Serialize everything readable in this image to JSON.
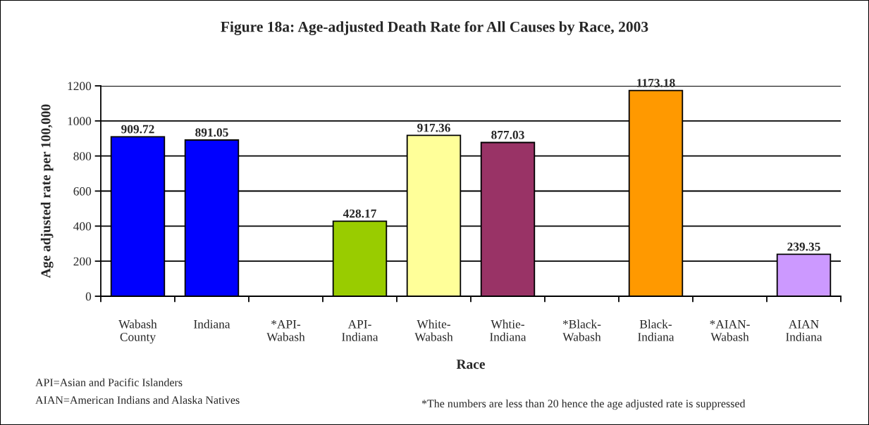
{
  "chart_data": {
    "type": "bar",
    "title": "Figure 18a: Age-adjusted Death Rate for All Causes by Race, 2003",
    "xlabel": "Race",
    "ylabel": "Age adjusted rate per 100,000",
    "categories": [
      "Wabash County",
      "Indiana",
      "*API-Wabash",
      "API-Indiana",
      "White-Wabash",
      "Whtie-Indiana",
      "*Black-Wabash",
      "Black-Indiana",
      "*AIAN-Wabash",
      "AIAN Indiana"
    ],
    "values": [
      909.72,
      891.05,
      null,
      428.17,
      917.36,
      877.03,
      null,
      1173.18,
      null,
      239.35
    ],
    "colors": [
      "#0000ff",
      "#0000ff",
      null,
      "#99cc00",
      "#ffff99",
      "#993366",
      null,
      "#ff9900",
      null,
      "#cc99ff"
    ],
    "ylim": [
      0,
      1200
    ],
    "yticks": [
      0,
      200,
      400,
      600,
      800,
      1000,
      1200
    ],
    "grid": "y",
    "data_labels": true,
    "legend": false,
    "annotations": [
      "API=Asian and Pacific Islanders",
      "AIAN=American Indians and Alaska Natives",
      "*The numbers are less than 20 hence the age adjusted rate is suppressed"
    ]
  }
}
